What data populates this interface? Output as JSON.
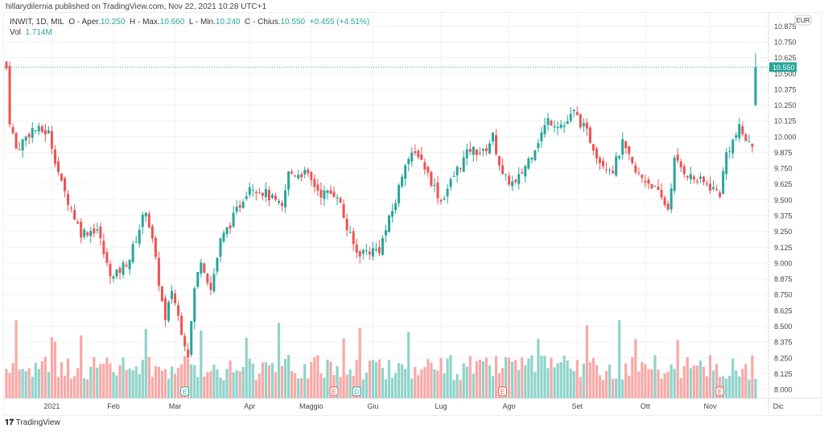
{
  "header": {
    "published": "hillarydilernia published on TradingView.com, Nov 22, 2021 10:28 UTC+1"
  },
  "legend": {
    "symbol": "INWIT, 1D, MIL",
    "o_label": "O - Aper.",
    "o": "10.250",
    "h_label": "H - Max.",
    "h": "10.660",
    "l_label": "L - Min.",
    "l": "10.240",
    "c_label": "C - Chius.",
    "c": "10.550",
    "change": "+0.455 (+4.51%)",
    "vol_label": "Vol",
    "vol": "1.714M"
  },
  "footer": {
    "brand": "TradingView"
  },
  "colors": {
    "up": "#26a69a",
    "down": "#ef5350",
    "vol_up": "#8fd3cb",
    "vol_down": "#f7a9a7"
  },
  "chart_data": {
    "type": "candlestick",
    "currency": "EUR",
    "last_price_label": "10.550",
    "ylim": [
      7.95,
      10.9
    ],
    "y_ticks": [
      "10.875",
      "10.750",
      "10.625",
      "10.500",
      "10.375",
      "10.250",
      "10.125",
      "10.000",
      "9.875",
      "9.750",
      "9.625",
      "9.500",
      "9.375",
      "9.250",
      "9.125",
      "9.000",
      "8.875",
      "8.750",
      "8.625",
      "8.500",
      "8.375",
      "8.250",
      "8.125",
      "8.000"
    ],
    "x_ticks": [
      {
        "label": "2021",
        "day": 14
      },
      {
        "label": "Feb",
        "day": 33
      },
      {
        "label": "Mar",
        "day": 52
      },
      {
        "label": "Apr",
        "day": 75
      },
      {
        "label": "Maggio",
        "day": 94
      },
      {
        "label": "Giu",
        "day": 113
      },
      {
        "label": "Lug",
        "day": 134
      },
      {
        "label": "Ago",
        "day": 155
      },
      {
        "label": "Set",
        "day": 176
      },
      {
        "label": "Ott",
        "day": 197
      },
      {
        "label": "Nov",
        "day": 217
      },
      {
        "label": "Dic",
        "day": 238
      }
    ],
    "close_path": [
      [
        0,
        10.54
      ],
      [
        1,
        10.13
      ],
      [
        3,
        9.9
      ],
      [
        8,
        10.06
      ],
      [
        13,
        10.03
      ],
      [
        17,
        9.62
      ],
      [
        20,
        9.43
      ],
      [
        23,
        9.24
      ],
      [
        28,
        9.27
      ],
      [
        31,
        8.98
      ],
      [
        33,
        8.88
      ],
      [
        38,
        9.04
      ],
      [
        43,
        9.43
      ],
      [
        45,
        9.17
      ],
      [
        49,
        8.53
      ],
      [
        51,
        8.79
      ],
      [
        54,
        8.47
      ],
      [
        56,
        8.28
      ],
      [
        58,
        8.79
      ],
      [
        60,
        9.04
      ],
      [
        63,
        8.79
      ],
      [
        66,
        9.17
      ],
      [
        70,
        9.36
      ],
      [
        75,
        9.62
      ],
      [
        80,
        9.55
      ],
      [
        85,
        9.43
      ],
      [
        87,
        9.71
      ],
      [
        92,
        9.71
      ],
      [
        97,
        9.55
      ],
      [
        102,
        9.55
      ],
      [
        105,
        9.27
      ],
      [
        108,
        9.08
      ],
      [
        115,
        9.11
      ],
      [
        120,
        9.49
      ],
      [
        123,
        9.81
      ],
      [
        127,
        9.87
      ],
      [
        131,
        9.65
      ],
      [
        134,
        9.49
      ],
      [
        139,
        9.74
      ],
      [
        143,
        9.9
      ],
      [
        147,
        9.87
      ],
      [
        150,
        10.0
      ],
      [
        153,
        9.68
      ],
      [
        157,
        9.62
      ],
      [
        162,
        9.87
      ],
      [
        167,
        10.13
      ],
      [
        172,
        10.09
      ],
      [
        175,
        10.19
      ],
      [
        179,
        10.03
      ],
      [
        183,
        9.81
      ],
      [
        187,
        9.74
      ],
      [
        190,
        9.94
      ],
      [
        194,
        9.71
      ],
      [
        199,
        9.62
      ],
      [
        204,
        9.43
      ],
      [
        206,
        9.81
      ],
      [
        211,
        9.68
      ],
      [
        216,
        9.62
      ],
      [
        220,
        9.55
      ],
      [
        222,
        9.87
      ],
      [
        226,
        10.06
      ],
      [
        229,
        9.94
      ],
      [
        230,
        9.94
      ]
    ],
    "last_candle": {
      "open": 10.25,
      "high": 10.66,
      "low": 10.24,
      "close": 10.55
    },
    "events": [
      {
        "label": "E",
        "day": 55,
        "kind": "up"
      },
      {
        "label": "E",
        "day": 101,
        "kind": "down"
      },
      {
        "label": "D",
        "day": 108,
        "kind": "up"
      },
      {
        "label": "E",
        "day": 153,
        "kind": "down"
      },
      {
        "label": "E",
        "day": 220,
        "kind": "down"
      }
    ]
  }
}
